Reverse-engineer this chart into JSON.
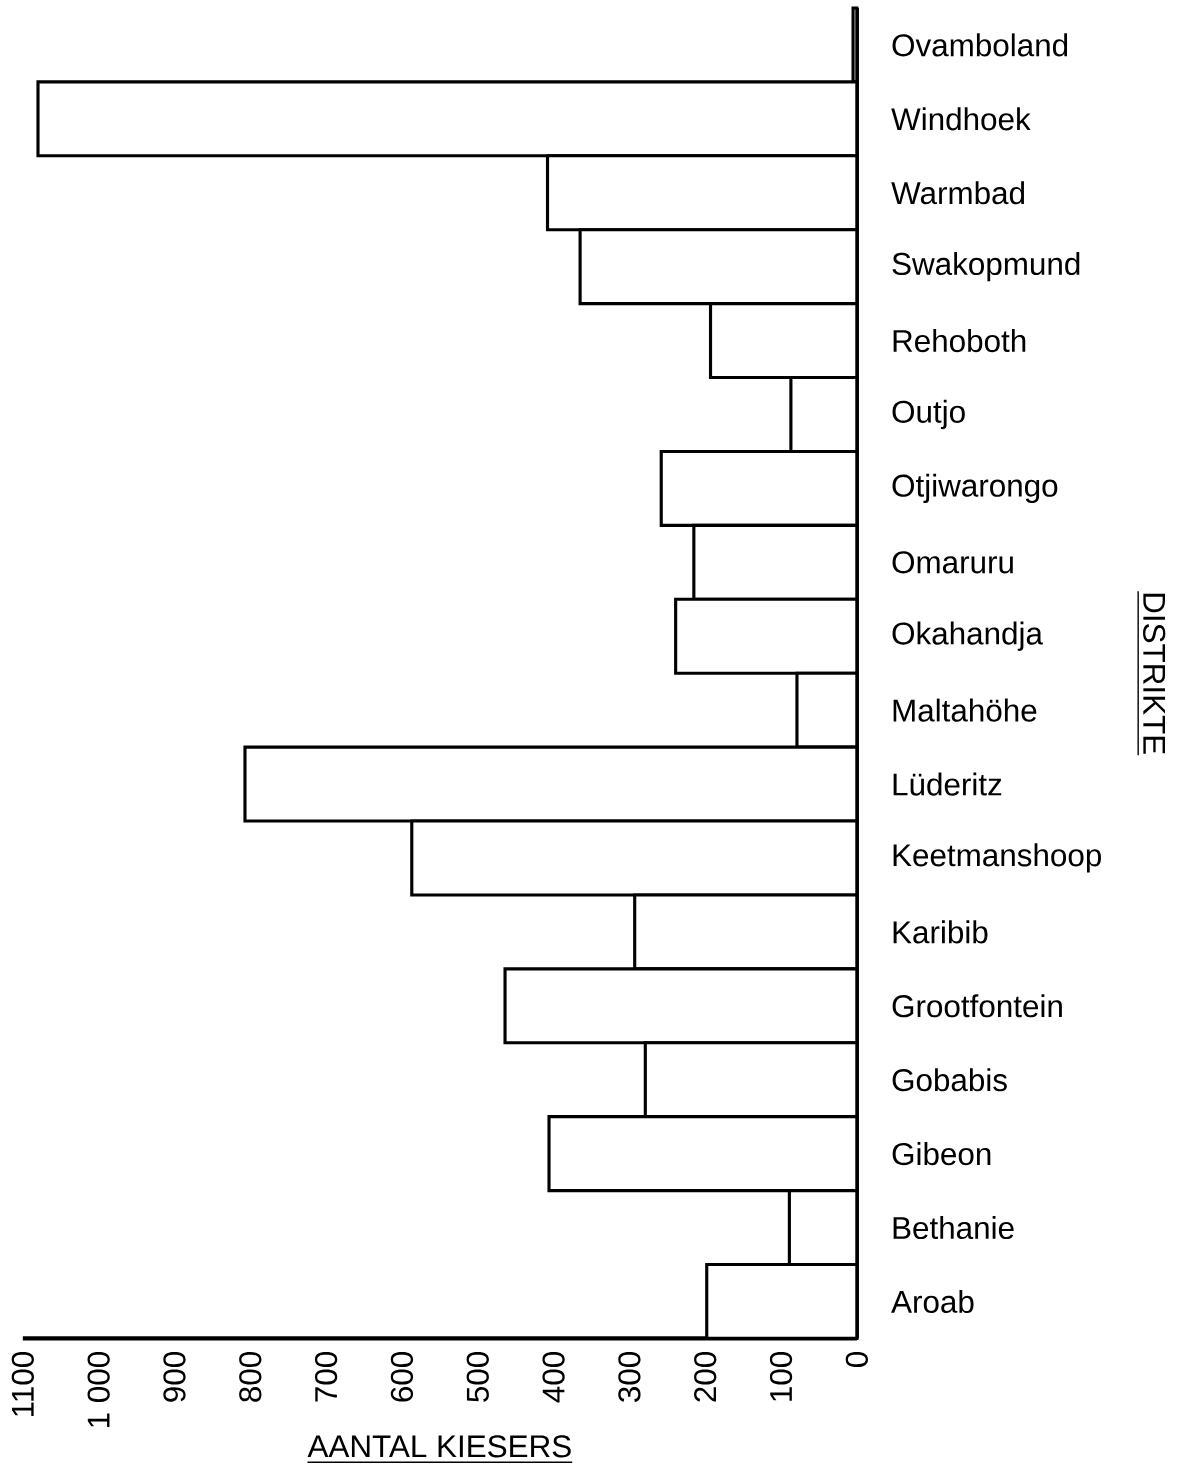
{
  "chart_data": {
    "type": "bar",
    "orientation": "horizontal",
    "categories": [
      "Ovamboland",
      "Windhoek",
      "Warmbad",
      "Swakopmund",
      "Rehoboth",
      "Outjo",
      "Otjiwarongo",
      "Omaruru",
      "Okahandja",
      "Maltahöhe",
      "Lüderitz",
      "Keetmanshoop",
      "Karibib",
      "Grootfontein",
      "Gobabis",
      "Gibeon",
      "Bethanie",
      "Aroab"
    ],
    "values": [
      5,
      1080,
      408,
      365,
      193,
      87,
      258,
      215,
      239,
      79,
      807,
      587,
      293,
      464,
      279,
      406,
      89,
      198
    ],
    "color": "#000000",
    "xlim": [
      1100,
      0
    ],
    "xticks": [
      1100,
      {
        "value": 1000,
        "label": "1 000"
      },
      900,
      800,
      700,
      600,
      500,
      400,
      300,
      200,
      100,
      0
    ],
    "xlabel": "AANTAL KIESERS",
    "ylabel": "DISTRIKTE"
  }
}
